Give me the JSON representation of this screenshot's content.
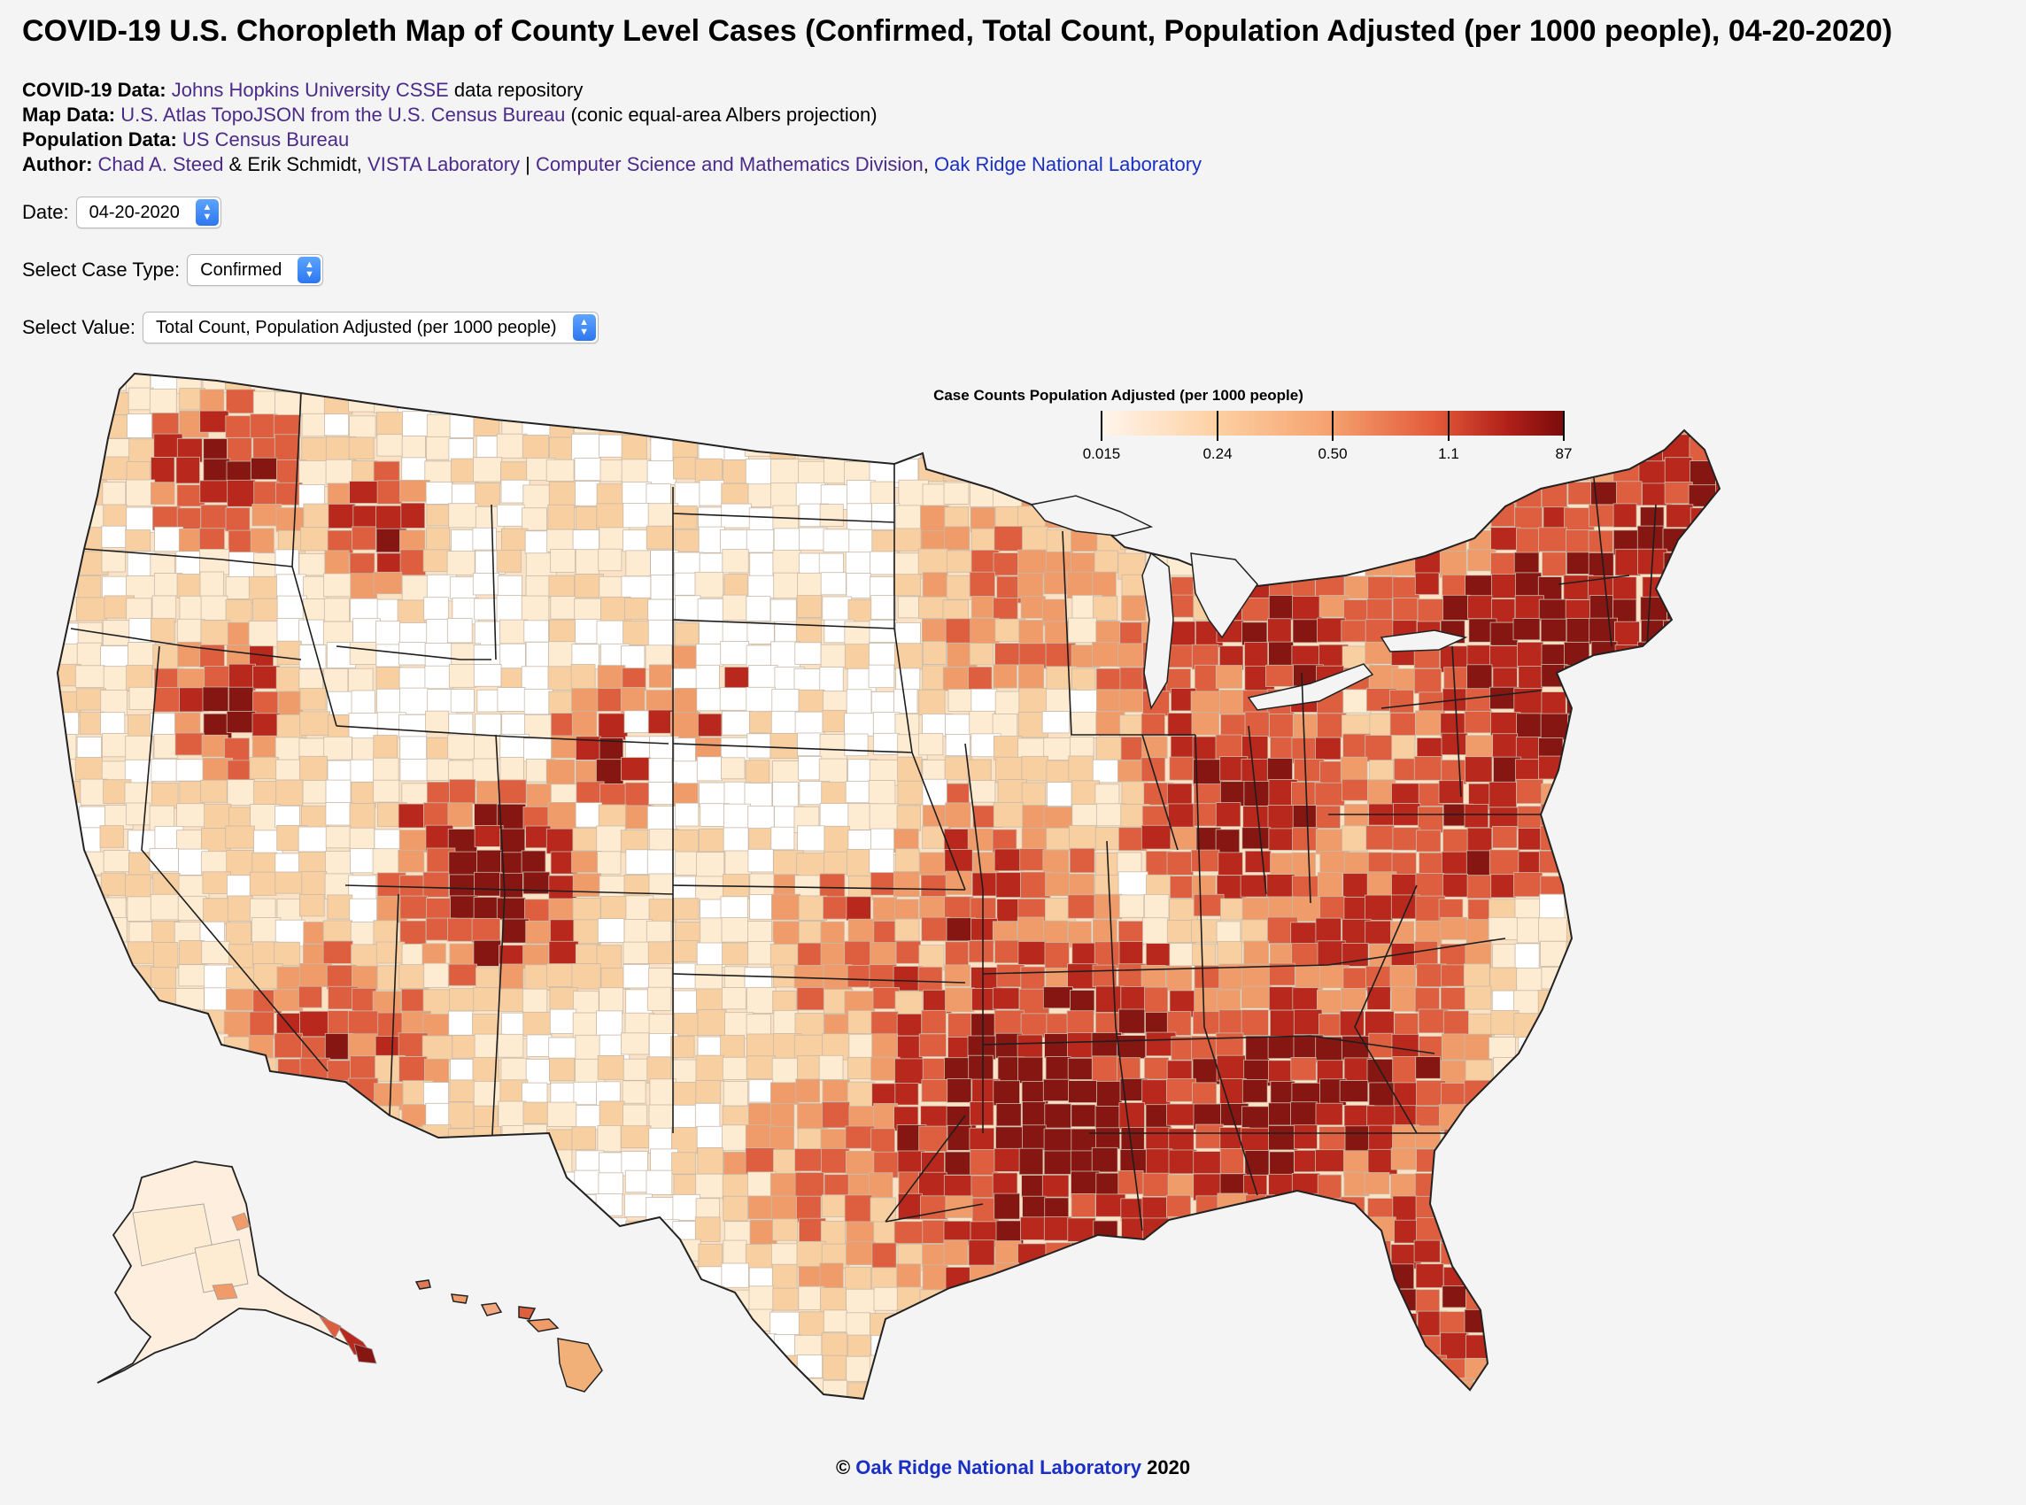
{
  "title": "COVID-19 U.S. Choropleth Map of County Level Cases (Confirmed, Total Count, Population Adjusted (per 1000 people), 04-20-2020)",
  "credits": {
    "covid": {
      "label": "COVID-19 Data:",
      "link": "Johns Hopkins University CSSE",
      "suffix": " data repository"
    },
    "map": {
      "label": "Map Data:",
      "link": "U.S. Atlas TopoJSON from the U.S. Census Bureau",
      "suffix": " (conic equal-area Albers projection)"
    },
    "population": {
      "label": "Population Data:",
      "link": "US Census Bureau"
    },
    "author": {
      "label": "Author:",
      "name1": "Chad A. Steed",
      "and": " & Erik Schmidt, ",
      "lab": "VISTA Laboratory",
      "sep": " | ",
      "division": "Computer Science and Mathematics Division",
      "comma": ", ",
      "org": "Oak Ridge National Laboratory"
    }
  },
  "controls": {
    "date": {
      "label": "Date:",
      "value": "04-20-2020"
    },
    "case_type": {
      "label": "Select Case Type:",
      "value": "Confirmed"
    },
    "value": {
      "label": "Select Value:",
      "value": "Total Count, Population Adjusted (per 1000 people)"
    }
  },
  "legend": {
    "title": "Case Counts Population Adjusted (per 1000 people)",
    "ticks": [
      "0.015",
      "0.24",
      "0.50",
      "1.1",
      "87"
    ],
    "colors": [
      "#fff5eb",
      "#fdd0a2",
      "#f4a06d",
      "#e35a3a",
      "#b02019",
      "#7a0c0c"
    ]
  },
  "colors": {
    "c0": "#ffffff",
    "c1": "#fdebd2",
    "c2": "#f8cfa0",
    "c3": "#ef9b6a",
    "c4": "#dd5f40",
    "c5": "#b8281d",
    "c6": "#861611",
    "border": "#2a2a2a",
    "link": "#4b2a8a",
    "link_blue": "#1a2fc4"
  },
  "footer": {
    "prefix": "© ",
    "org": "Oak Ridge National Laboratory",
    "year": " 2020"
  }
}
